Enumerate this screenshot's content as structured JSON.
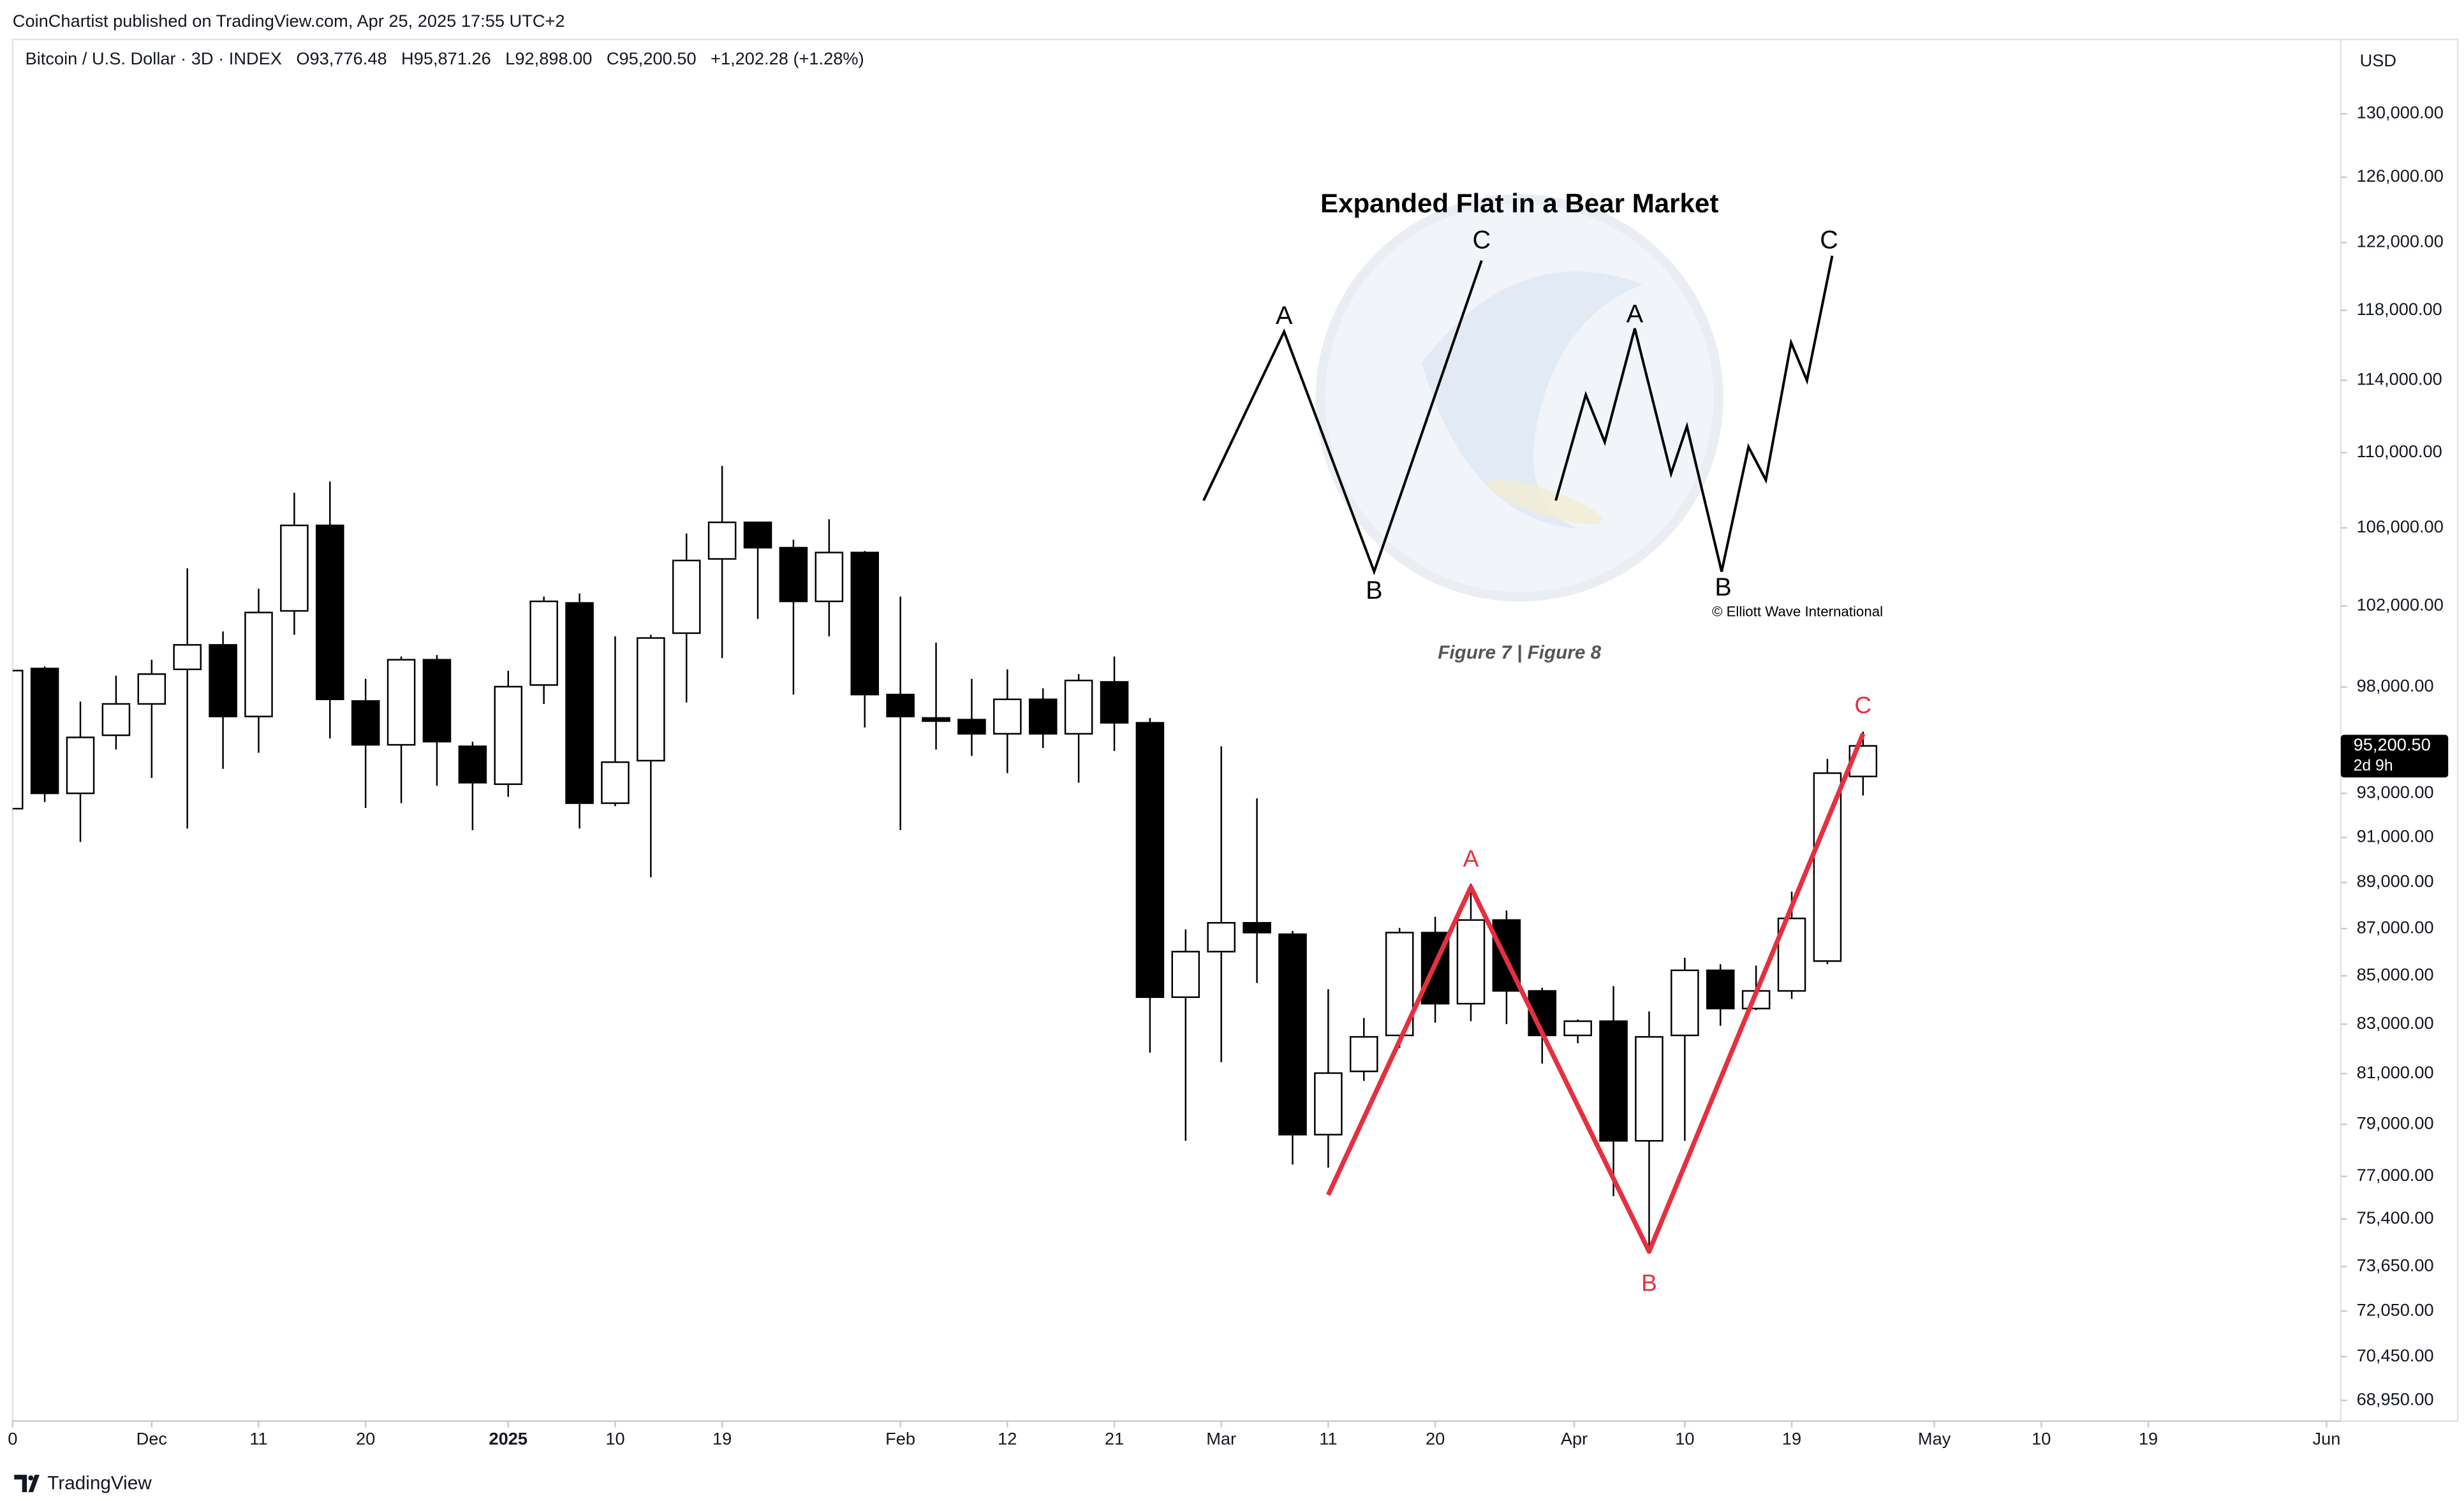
{
  "publisher_line": "CoinChartist published on TradingView.com, Apr 25, 2025 17:55 UTC+2",
  "footer": "TradingView",
  "chart_data": {
    "type": "candlestick",
    "title": "Bitcoin / U.S. Dollar · 3D · INDEX",
    "ohlc_labels": [
      "O93,776.48",
      "H95,871.26",
      "L92,898.00",
      "C95,200.50"
    ],
    "change_label": "+1,202.28 (+1.28%)",
    "y_axis_label": "USD",
    "log_scale": true,
    "grid": false,
    "up_color": "#ffffff",
    "down_color": "#000000",
    "wick_color": "#000000",
    "open": [
      92300,
      98900,
      93000,
      95700,
      97190,
      98860,
      100060,
      96590,
      101750,
      106130,
      97330,
      95250,
      99330,
      95180,
      93420,
      98100,
      102150,
      92550,
      94510,
      100640,
      104390,
      106290,
      104970,
      102230,
      104720,
      97640,
      96520,
      96440,
      95770,
      97410,
      95770,
      98250,
      96290,
      84110,
      86020,
      87250,
      86760,
      78600,
      81090,
      82540,
      86830,
      83840,
      87370,
      84370,
      82540,
      83120,
      78360,
      82540,
      85230,
      83640,
      84370,
      85620,
      93776.48
    ],
    "high": [
      98800,
      99000,
      97300,
      98550,
      99330,
      103910,
      100720,
      102870,
      107850,
      108450,
      98400,
      99490,
      99560,
      95400,
      98790,
      102470,
      102630,
      100480,
      100560,
      105710,
      109290,
      106290,
      105380,
      106450,
      104800,
      102470,
      100170,
      98400,
      98860,
      97940,
      98630,
      99490,
      96520,
      86970,
      95180,
      92770,
      86900,
      84440,
      83250,
      87030,
      87510,
      88950,
      87780,
      84500,
      83190,
      84570,
      83520,
      85760,
      85490,
      85430,
      88600,
      94590,
      95871.26
    ],
    "low": [
      92300,
      92600,
      90800,
      95030,
      93710,
      91400,
      94130,
      94880,
      100560,
      95550,
      92330,
      92550,
      93350,
      91330,
      92840,
      97190,
      91400,
      92410,
      89230,
      97260,
      99410,
      101350,
      97640,
      100480,
      96070,
      91330,
      95030,
      94730,
      93930,
      95100,
      93490,
      94960,
      81840,
      78360,
      81460,
      84700,
      77450,
      77330,
      80710,
      82030,
      83060,
      83120,
      83000,
      81400,
      82220,
      76250,
      74140,
      78360,
      82930,
      83580,
      84040,
      85490,
      92898
    ],
    "close": [
      98800,
      93000,
      95600,
      97190,
      98630,
      100060,
      96590,
      101670,
      106130,
      97410,
      95250,
      99330,
      95400,
      93490,
      98020,
      102230,
      92550,
      94440,
      100400,
      104310,
      106290,
      104970,
      102230,
      104720,
      97640,
      96590,
      96370,
      95770,
      97410,
      95770,
      98320,
      96290,
      84110,
      86020,
      87250,
      86830,
      78600,
      81020,
      82480,
      86830,
      83840,
      87370,
      84370,
      82540,
      83120,
      78360,
      82480,
      85230,
      83640,
      84370,
      87440,
      93930,
      95200.5
    ],
    "last_price": {
      "value": 95200.5,
      "label": "95,200.50"
    },
    "countdown": "2d 9h",
    "xlim": [
      0.1,
      65.4
    ],
    "xticks": [
      {
        "value": 0.1,
        "label": "0"
      },
      {
        "value": 4,
        "label": "Dec"
      },
      {
        "value": 7,
        "label": "11"
      },
      {
        "value": 10,
        "label": "20"
      },
      {
        "value": 14,
        "label": "2025"
      },
      {
        "value": 17,
        "label": "10"
      },
      {
        "value": 20,
        "label": "19"
      },
      {
        "value": 25,
        "label": "Feb"
      },
      {
        "value": 28,
        "label": "12"
      },
      {
        "value": 31,
        "label": "21"
      },
      {
        "value": 34,
        "label": "Mar"
      },
      {
        "value": 37,
        "label": "11"
      },
      {
        "value": 40,
        "label": "20"
      },
      {
        "value": 43.9,
        "label": "Apr"
      },
      {
        "value": 47,
        "label": "10"
      },
      {
        "value": 50,
        "label": "19"
      },
      {
        "value": 54,
        "label": "May"
      },
      {
        "value": 57,
        "label": "10"
      },
      {
        "value": 60,
        "label": "19"
      },
      {
        "value": 65,
        "label": "Jun"
      }
    ],
    "ylim": [
      68250,
      134850
    ],
    "yticks": [
      {
        "value": 68950,
        "label": "68,950.00"
      },
      {
        "value": 70450,
        "label": "70,450.00"
      },
      {
        "value": 72050,
        "label": "72,050.00"
      },
      {
        "value": 73650,
        "label": "73,650.00"
      },
      {
        "value": 75400,
        "label": "75,400.00"
      },
      {
        "value": 77000,
        "label": "77,000.00"
      },
      {
        "value": 79000,
        "label": "79,000.00"
      },
      {
        "value": 81000,
        "label": "81,000.00"
      },
      {
        "value": 83000,
        "label": "83,000.00"
      },
      {
        "value": 85000,
        "label": "85,000.00"
      },
      {
        "value": 87000,
        "label": "87,000.00"
      },
      {
        "value": 89000,
        "label": "89,000.00"
      },
      {
        "value": 91000,
        "label": "91,000.00"
      },
      {
        "value": 93000,
        "label": "93,000.00"
      },
      {
        "value": 98000,
        "label": "98,000.00"
      },
      {
        "value": 102000,
        "label": "102,000.00"
      },
      {
        "value": 106000,
        "label": "106,000.00"
      },
      {
        "value": 110000,
        "label": "110,000.00"
      },
      {
        "value": 114000,
        "label": "114,000.00"
      },
      {
        "value": 118000,
        "label": "118,000.00"
      },
      {
        "value": 122000,
        "label": "122,000.00"
      },
      {
        "value": 126000,
        "label": "126,000.00"
      },
      {
        "value": 130000,
        "label": "130,000.00"
      }
    ],
    "wave": {
      "color": "#e5303f",
      "x": [
        37,
        41,
        46,
        52
      ],
      "y": [
        76300,
        88800,
        74200,
        95770
      ],
      "labels": [
        null,
        "A",
        "B",
        "C"
      ]
    }
  },
  "inset": {
    "title": "Expanded Flat in a Bear Market",
    "labels": [
      "A",
      "B",
      "C",
      "A",
      "B",
      "C"
    ],
    "caption": "Figure 7 | Figure 8",
    "credit": "© Elliott Wave International"
  }
}
